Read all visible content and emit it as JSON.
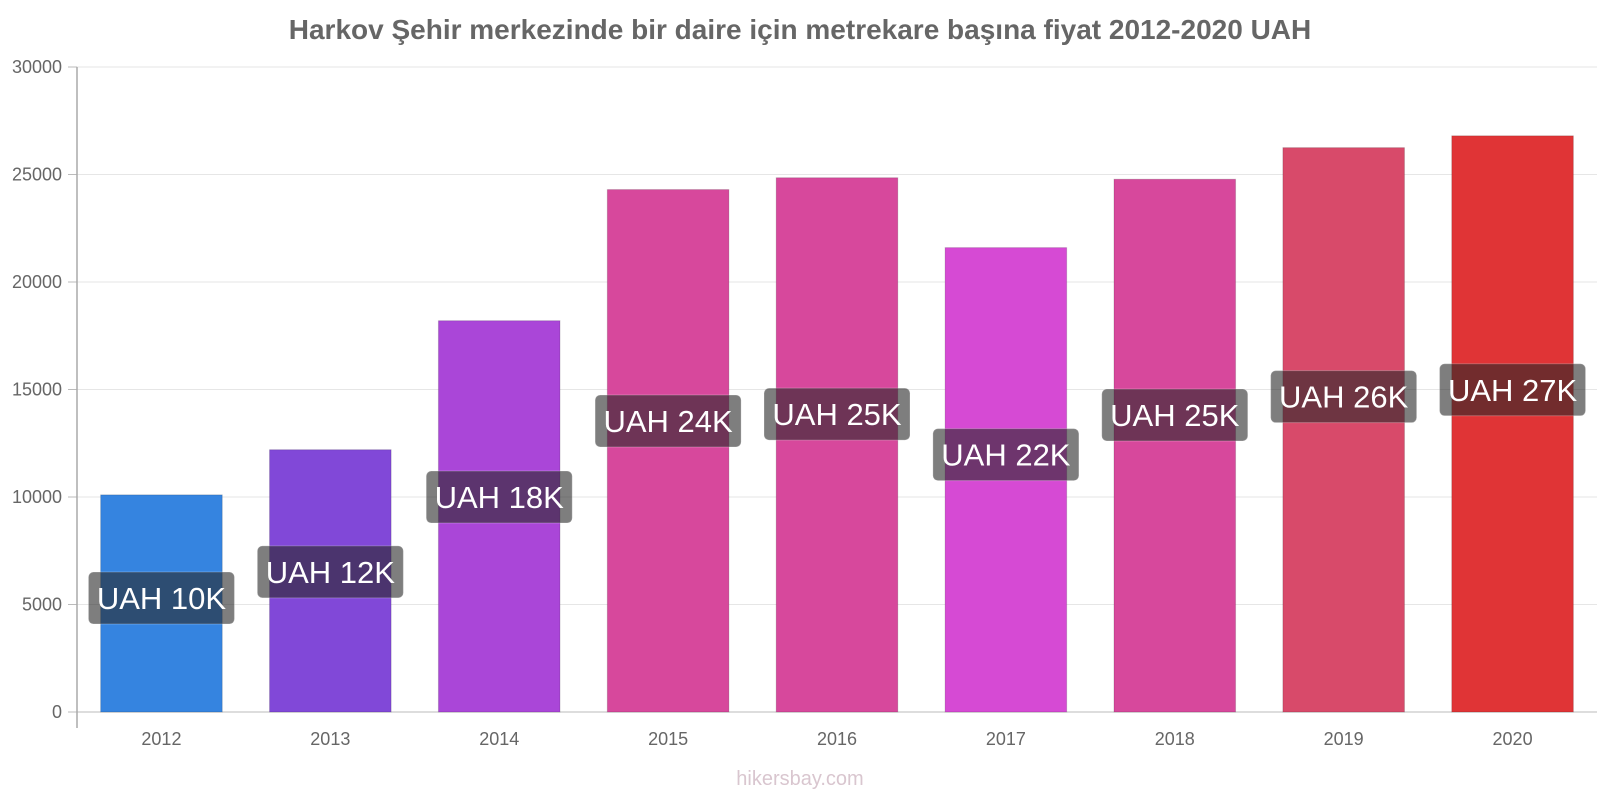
{
  "chart_data": {
    "type": "bar",
    "title": "Harkov Şehir merkezinde bir daire için metrekare başına fiyat 2012-2020 UAH",
    "xlabel": "",
    "ylabel": "",
    "categories": [
      "2012",
      "2013",
      "2014",
      "2015",
      "2016",
      "2017",
      "2018",
      "2019",
      "2020"
    ],
    "values": [
      10100,
      12200,
      18200,
      24300,
      24850,
      21600,
      24780,
      26250,
      26800
    ],
    "value_labels": [
      "UAH 10K",
      "UAH 12K",
      "UAH 18K",
      "UAH 24K",
      "UAH 25K",
      "UAH 22K",
      "UAH 25K",
      "UAH 26K",
      "UAH 27K"
    ],
    "bar_colors": [
      "#3584e0",
      "#8148d8",
      "#aa46d8",
      "#d7489c",
      "#d7489c",
      "#d64ad4",
      "#d7489c",
      "#d84a6a",
      "#e03436"
    ],
    "yticks": [
      "0",
      "5000",
      "10000",
      "15000",
      "20000",
      "25000",
      "30000"
    ],
    "ylim": [
      0,
      30000
    ],
    "grid": true,
    "legend": "none"
  },
  "watermark": "hikersbay.com"
}
